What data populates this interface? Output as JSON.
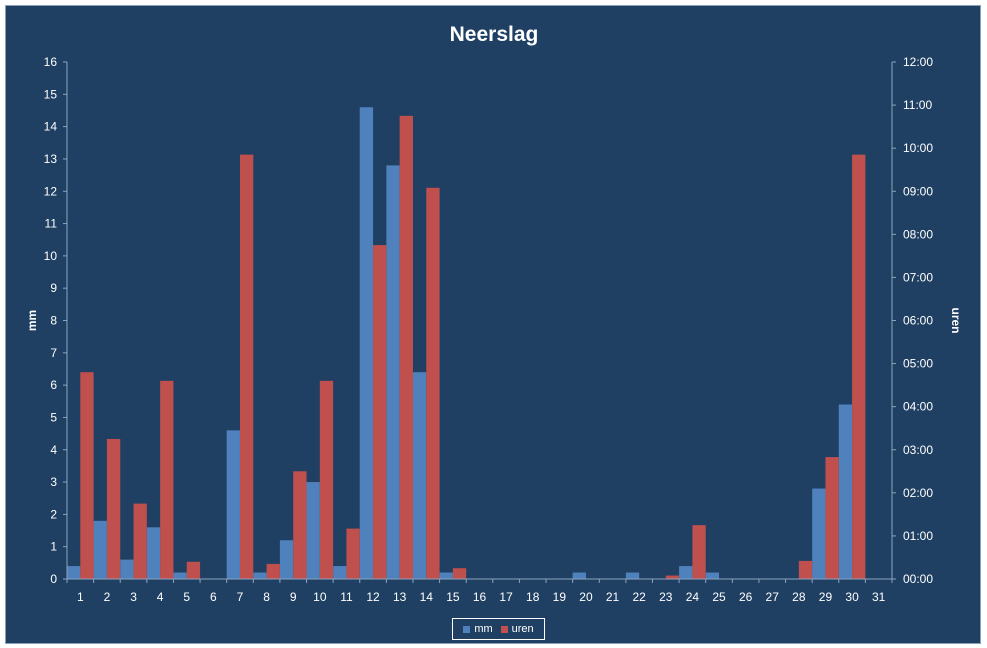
{
  "chart_data": {
    "type": "bar",
    "title": "Neerslag",
    "ylabel_left": "mm",
    "ylabel_right": "uren",
    "categories": [
      "1",
      "2",
      "3",
      "4",
      "5",
      "6",
      "7",
      "8",
      "9",
      "10",
      "11",
      "12",
      "13",
      "14",
      "15",
      "16",
      "17",
      "18",
      "19",
      "20",
      "21",
      "22",
      "23",
      "24",
      "25",
      "26",
      "27",
      "28",
      "29",
      "30",
      "31"
    ],
    "ylim_left": [
      0,
      16
    ],
    "yticks_left": [
      "0",
      "1",
      "2",
      "3",
      "4",
      "5",
      "6",
      "7",
      "8",
      "9",
      "10",
      "11",
      "12",
      "13",
      "14",
      "15",
      "16"
    ],
    "ylim_right_hours": [
      0,
      12
    ],
    "yticks_right": [
      "00:00",
      "01:00",
      "02:00",
      "03:00",
      "04:00",
      "05:00",
      "06:00",
      "07:00",
      "08:00",
      "09:00",
      "10:00",
      "11:00",
      "12:00"
    ],
    "series": [
      {
        "name": "mm",
        "axis": "left",
        "color": "#4f81bd",
        "values": [
          0.4,
          1.8,
          0.6,
          1.6,
          0.2,
          0,
          4.6,
          0.2,
          1.2,
          3.0,
          0.4,
          14.6,
          12.8,
          6.4,
          0.2,
          0,
          0,
          0,
          0,
          0.2,
          0,
          0.2,
          0,
          0.4,
          0.2,
          0,
          0,
          0,
          2.8,
          5.4,
          0
        ]
      },
      {
        "name": "uren",
        "axis": "right",
        "color": "#c0504d",
        "values": [
          4.8,
          3.25,
          1.75,
          4.6,
          0.4,
          0,
          9.85,
          0.35,
          2.5,
          4.6,
          1.17,
          7.75,
          10.75,
          9.08,
          0.25,
          0,
          0,
          0,
          0,
          0,
          0,
          0,
          0.08,
          1.25,
          0,
          0,
          0,
          0.42,
          2.83,
          9.85,
          0
        ]
      }
    ],
    "grid": false,
    "legend_position": "bottom"
  }
}
